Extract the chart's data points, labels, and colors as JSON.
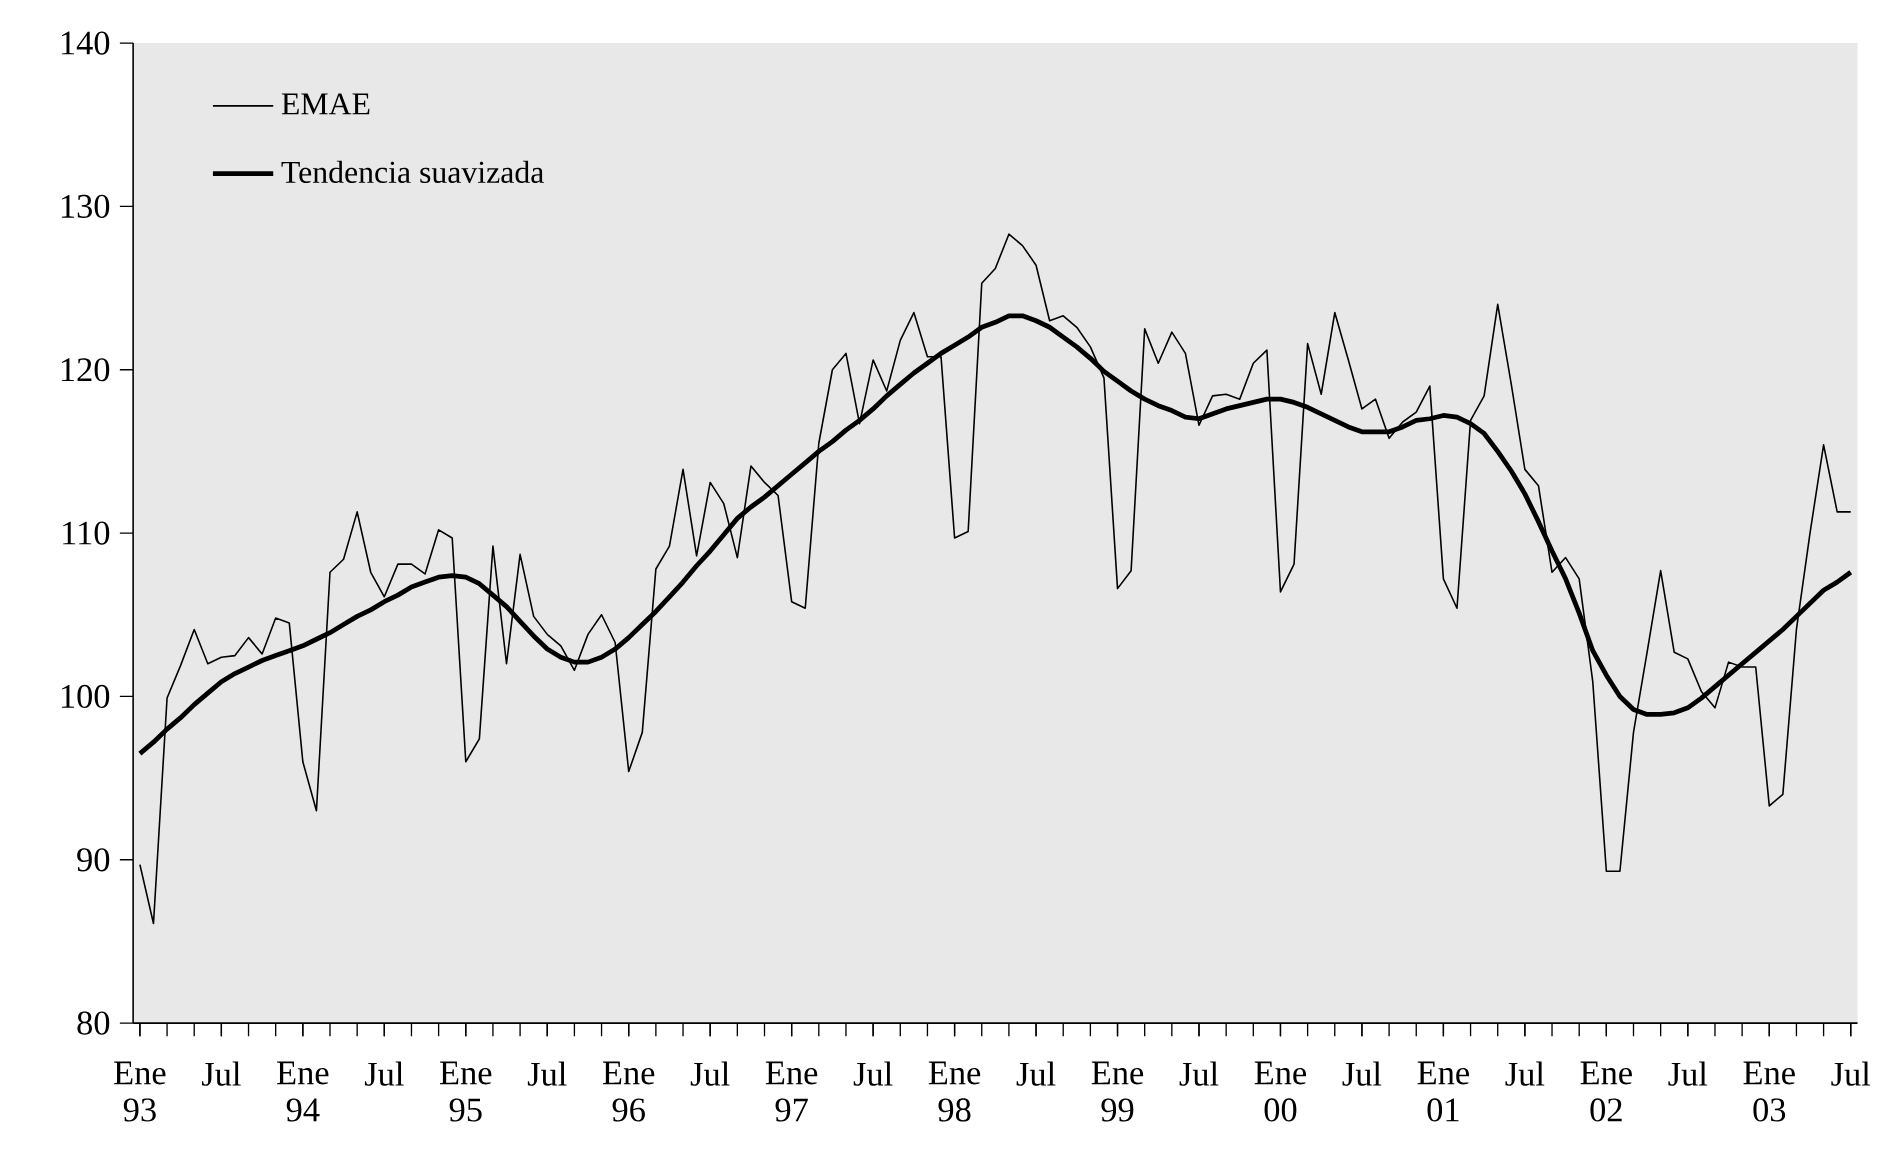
{
  "chart_data": {
    "type": "line",
    "categories": [
      "Ene 93",
      null,
      null,
      null,
      null,
      null,
      "Jul",
      null,
      null,
      null,
      null,
      null,
      "Ene 94",
      null,
      null,
      null,
      null,
      null,
      "Jul",
      null,
      null,
      null,
      null,
      null,
      "Ene 95",
      null,
      null,
      null,
      null,
      null,
      "Jul",
      null,
      null,
      null,
      null,
      null,
      "Ene 96",
      null,
      null,
      null,
      null,
      null,
      "Jul",
      null,
      null,
      null,
      null,
      null,
      "Ene 97",
      null,
      null,
      null,
      null,
      null,
      "Jul",
      null,
      null,
      null,
      null,
      null,
      "Ene 98",
      null,
      null,
      null,
      null,
      null,
      "Jul",
      null,
      null,
      null,
      null,
      null,
      "Ene 99",
      null,
      null,
      null,
      null,
      null,
      "Jul",
      null,
      null,
      null,
      null,
      null,
      "Ene 00",
      null,
      null,
      null,
      null,
      null,
      "Jul",
      null,
      null,
      null,
      null,
      null,
      "Ene 01",
      null,
      null,
      null,
      null,
      null,
      "Jul",
      null,
      null,
      null,
      null,
      null,
      "Ene 02",
      null,
      null,
      null,
      null,
      null,
      "Jul",
      null,
      null,
      null,
      null,
      null,
      "Ene 03",
      null,
      null,
      null,
      null,
      null,
      "Jul"
    ],
    "series": [
      {
        "name": "EMAE",
        "color": "#000000",
        "values": [
          89.7,
          86.1,
          99.9,
          101.9,
          104.1,
          102.0,
          102.4,
          102.5,
          103.6,
          102.6,
          104.8,
          104.5,
          96.0,
          93.0,
          107.6,
          108.4,
          111.3,
          107.6,
          106.1,
          108.1,
          108.1,
          107.5,
          110.2,
          109.7,
          96.0,
          97.4,
          109.2,
          102.0,
          108.7,
          104.9,
          103.8,
          103.1,
          101.6,
          103.8,
          105.0,
          103.3,
          95.4,
          97.8,
          107.8,
          109.2,
          113.9,
          108.6,
          113.1,
          111.8,
          108.5,
          114.1,
          113.1,
          112.3,
          105.8,
          105.4,
          115.5,
          120.0,
          121.0,
          116.7,
          120.6,
          118.7,
          121.8,
          123.5,
          120.8,
          120.8,
          109.7,
          110.1,
          125.3,
          126.2,
          128.3,
          127.6,
          126.4,
          123.0,
          123.3,
          122.6,
          121.4,
          119.5,
          106.6,
          107.7,
          122.5,
          120.4,
          122.3,
          121.0,
          116.6,
          118.4,
          118.5,
          118.2,
          120.4,
          121.2,
          106.4,
          108.1,
          121.6,
          118.5,
          123.5,
          120.6,
          117.6,
          118.2,
          115.8,
          116.8,
          117.4,
          119.0,
          107.2,
          105.4,
          116.9,
          118.4,
          124.0,
          119.1,
          113.9,
          112.9,
          107.6,
          108.5,
          107.2,
          100.9,
          89.3,
          89.3,
          97.8,
          102.7,
          107.7,
          102.7,
          102.3,
          100.3,
          99.3,
          102.1,
          101.8,
          101.8,
          93.3,
          94.0,
          104.1,
          110.0,
          115.4,
          111.3,
          111.3
        ]
      },
      {
        "name": "Tendencia suavizada",
        "color": "#000000",
        "values": [
          96.5,
          97.2,
          98.0,
          98.7,
          99.5,
          100.2,
          100.9,
          101.4,
          101.8,
          102.2,
          102.5,
          102.8,
          103.1,
          103.5,
          103.9,
          104.4,
          104.9,
          105.3,
          105.8,
          106.2,
          106.7,
          107.0,
          107.3,
          107.4,
          107.3,
          106.9,
          106.2,
          105.5,
          104.6,
          103.7,
          102.9,
          102.4,
          102.1,
          102.1,
          102.4,
          102.9,
          103.6,
          104.4,
          105.2,
          106.1,
          107.0,
          108.0,
          108.9,
          109.9,
          110.9,
          111.6,
          112.2,
          112.9,
          113.6,
          114.3,
          115.0,
          115.6,
          116.3,
          116.9,
          117.6,
          118.4,
          119.1,
          119.8,
          120.4,
          121.0,
          121.5,
          122.0,
          122.6,
          122.9,
          123.3,
          123.3,
          123.0,
          122.6,
          122.0,
          121.4,
          120.7,
          119.9,
          119.3,
          118.7,
          118.2,
          117.8,
          117.5,
          117.1,
          117.0,
          117.3,
          117.6,
          117.8,
          118.0,
          118.2,
          118.2,
          118.0,
          117.7,
          117.3,
          116.9,
          116.5,
          116.2,
          116.2,
          116.2,
          116.5,
          116.9,
          117.0,
          117.2,
          117.1,
          116.7,
          116.1,
          115.0,
          113.8,
          112.4,
          110.7,
          108.9,
          107.2,
          105.1,
          102.8,
          101.3,
          100.0,
          99.2,
          98.9,
          98.9,
          99.0,
          99.3,
          99.9,
          100.6,
          101.3,
          102.0,
          102.7,
          103.4,
          104.1,
          104.9,
          105.7,
          106.5,
          107.0,
          107.6
        ]
      }
    ],
    "ylim": [
      80,
      140
    ],
    "yticks": [
      80,
      90,
      100,
      110,
      120,
      130,
      140
    ],
    "legend": "top left"
  }
}
